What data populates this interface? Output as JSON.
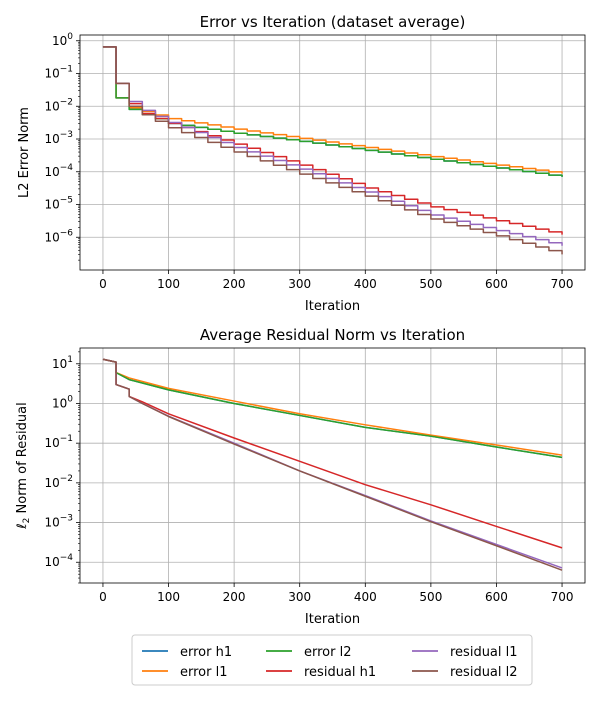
{
  "chart_data": [
    {
      "type": "line",
      "title": "Error vs Iteration (dataset average)",
      "xlabel": "Iteration",
      "ylabel": "L2 Error Norm",
      "yscale": "log",
      "xlim": [
        -35,
        735
      ],
      "ylim": [
        1e-07,
        1.5
      ],
      "xticks": [
        0,
        100,
        200,
        300,
        400,
        500,
        600,
        700
      ],
      "xtick_labels": [
        "0",
        "100",
        "200",
        "300",
        "400",
        "500",
        "600",
        "700"
      ],
      "yticks": [
        1e-06,
        1e-05,
        0.0001,
        0.001,
        0.01,
        0.1,
        1
      ],
      "ytick_labels": [
        {
          "base": "10",
          "exp": "−6"
        },
        {
          "base": "10",
          "exp": "−5"
        },
        {
          "base": "10",
          "exp": "−4"
        },
        {
          "base": "10",
          "exp": "−3"
        },
        {
          "base": "10",
          "exp": "−2"
        },
        {
          "base": "10",
          "exp": "−1"
        },
        {
          "base": "10",
          "exp": "0"
        }
      ],
      "grid": true,
      "series": [
        {
          "name": "error h1",
          "color": "#1f77b4",
          "step": 20,
          "points": [
            [
              0,
              0.65
            ],
            [
              20,
              0.018
            ],
            [
              40,
              0.008
            ],
            [
              100,
              0.003
            ],
            [
              200,
              0.0015
            ],
            [
              300,
              0.00085
            ],
            [
              400,
              0.00045
            ],
            [
              500,
              0.00024
            ],
            [
              600,
              0.00013
            ],
            [
              700,
              7e-05
            ]
          ]
        },
        {
          "name": "error l1",
          "color": "#ff7f0e",
          "step": 20,
          "points": [
            [
              0,
              0.65
            ],
            [
              20,
              0.018
            ],
            [
              40,
              0.009
            ],
            [
              100,
              0.0042
            ],
            [
              200,
              0.002
            ],
            [
              300,
              0.00105
            ],
            [
              400,
              0.00055
            ],
            [
              500,
              0.00029
            ],
            [
              600,
              0.00016
            ],
            [
              700,
              8.8e-05
            ]
          ]
        },
        {
          "name": "error l2",
          "color": "#2ca02c",
          "step": 20,
          "points": [
            [
              0,
              0.65
            ],
            [
              20,
              0.018
            ],
            [
              40,
              0.008
            ],
            [
              100,
              0.003
            ],
            [
              200,
              0.0015
            ],
            [
              300,
              0.00085
            ],
            [
              400,
              0.00045
            ],
            [
              500,
              0.00024
            ],
            [
              600,
              0.00013
            ],
            [
              700,
              7e-05
            ]
          ]
        },
        {
          "name": "residual h1",
          "color": "#d62728",
          "step": 20,
          "points": [
            [
              0,
              0.65
            ],
            [
              20,
              0.05
            ],
            [
              40,
              0.012
            ],
            [
              60,
              0.006
            ],
            [
              100,
              0.003
            ],
            [
              200,
              0.0007
            ],
            [
              300,
              0.00016
            ],
            [
              400,
              3.2e-05
            ],
            [
              500,
              8.5e-06
            ],
            [
              600,
              3.2e-06
            ],
            [
              700,
              1.2e-06
            ]
          ]
        },
        {
          "name": "residual l1",
          "color": "#9467bd",
          "step": 20,
          "points": [
            [
              0,
              0.65
            ],
            [
              20,
              0.05
            ],
            [
              40,
              0.014
            ],
            [
              60,
              0.0075
            ],
            [
              100,
              0.0032
            ],
            [
              200,
              0.00055
            ],
            [
              300,
              0.00012
            ],
            [
              400,
              2.4e-05
            ],
            [
              500,
              4.8e-06
            ],
            [
              600,
              1.6e-06
            ],
            [
              700,
              5.5e-07
            ]
          ]
        },
        {
          "name": "residual l2",
          "color": "#8c564b",
          "step": 20,
          "points": [
            [
              0,
              0.65
            ],
            [
              20,
              0.05
            ],
            [
              40,
              0.01
            ],
            [
              60,
              0.0055
            ],
            [
              100,
              0.0022
            ],
            [
              200,
              0.0004
            ],
            [
              300,
              8.5e-05
            ],
            [
              400,
              1.8e-05
            ],
            [
              500,
              3.6e-06
            ],
            [
              600,
              1.1e-06
            ],
            [
              700,
              3e-07
            ]
          ]
        }
      ]
    },
    {
      "type": "line",
      "title": "Average Residual Norm vs Iteration",
      "xlabel": "Iteration",
      "ylabel": {
        "prefix": "ℓ",
        "sub": "2",
        "rest": " Norm of Residual"
      },
      "yscale": "log",
      "xlim": [
        -35,
        735
      ],
      "ylim": [
        3e-05,
        25
      ],
      "xticks": [
        0,
        100,
        200,
        300,
        400,
        500,
        600,
        700
      ],
      "xtick_labels": [
        "0",
        "100",
        "200",
        "300",
        "400",
        "500",
        "600",
        "700"
      ],
      "yticks": [
        0.0001,
        0.001,
        0.01,
        0.1,
        1,
        10
      ],
      "ytick_labels": [
        {
          "base": "10",
          "exp": "−4"
        },
        {
          "base": "10",
          "exp": "−3"
        },
        {
          "base": "10",
          "exp": "−2"
        },
        {
          "base": "10",
          "exp": "−1"
        },
        {
          "base": "10",
          "exp": "0"
        },
        {
          "base": "10",
          "exp": "1"
        }
      ],
      "grid": true,
      "series": [
        {
          "name": "error h1",
          "color": "#1f77b4",
          "points": [
            [
              0,
              13
            ],
            [
              20,
              11
            ],
            [
              20,
              6
            ],
            [
              40,
              4
            ],
            [
              100,
              2.2
            ],
            [
              200,
              1.0
            ],
            [
              300,
              0.5
            ],
            [
              400,
              0.25
            ],
            [
              500,
              0.15
            ],
            [
              600,
              0.08
            ],
            [
              700,
              0.044
            ]
          ]
        },
        {
          "name": "error l1",
          "color": "#ff7f0e",
          "points": [
            [
              0,
              13
            ],
            [
              20,
              11
            ],
            [
              20,
              6
            ],
            [
              40,
              4.4
            ],
            [
              100,
              2.4
            ],
            [
              200,
              1.15
            ],
            [
              300,
              0.55
            ],
            [
              400,
              0.29
            ],
            [
              500,
              0.16
            ],
            [
              600,
              0.09
            ],
            [
              700,
              0.05
            ]
          ]
        },
        {
          "name": "error l2",
          "color": "#2ca02c",
          "points": [
            [
              0,
              13
            ],
            [
              20,
              11
            ],
            [
              20,
              6
            ],
            [
              40,
              4
            ],
            [
              100,
              2.2
            ],
            [
              200,
              1.0
            ],
            [
              300,
              0.5
            ],
            [
              400,
              0.25
            ],
            [
              500,
              0.15
            ],
            [
              600,
              0.08
            ],
            [
              700,
              0.044
            ]
          ]
        },
        {
          "name": "residual h1",
          "color": "#d62728",
          "points": [
            [
              0,
              13
            ],
            [
              20,
              11
            ],
            [
              20,
              3
            ],
            [
              40,
              2.3
            ],
            [
              40,
              1.5
            ],
            [
              60,
              1.1
            ],
            [
              100,
              0.55
            ],
            [
              200,
              0.135
            ],
            [
              300,
              0.035
            ],
            [
              400,
              0.009
            ],
            [
              500,
              0.0028
            ],
            [
              600,
              0.0008
            ],
            [
              700,
              0.00023
            ]
          ]
        },
        {
          "name": "residual l1",
          "color": "#9467bd",
          "points": [
            [
              0,
              13
            ],
            [
              20,
              11
            ],
            [
              20,
              3
            ],
            [
              40,
              2.3
            ],
            [
              40,
              1.5
            ],
            [
              60,
              1.0
            ],
            [
              100,
              0.48
            ],
            [
              200,
              0.1
            ],
            [
              300,
              0.02
            ],
            [
              400,
              0.0048
            ],
            [
              500,
              0.0011
            ],
            [
              600,
              0.00028
            ],
            [
              700,
              7.2e-05
            ]
          ]
        },
        {
          "name": "residual l2",
          "color": "#8c564b",
          "points": [
            [
              0,
              13
            ],
            [
              20,
              11
            ],
            [
              20,
              3
            ],
            [
              40,
              2.3
            ],
            [
              40,
              1.5
            ],
            [
              60,
              1.0
            ],
            [
              100,
              0.47
            ],
            [
              200,
              0.095
            ],
            [
              300,
              0.02
            ],
            [
              400,
              0.0046
            ],
            [
              500,
              0.00105
            ],
            [
              600,
              0.00026
            ],
            [
              700,
              6.3e-05
            ]
          ]
        }
      ]
    }
  ],
  "legend": {
    "placement": "bottom-center",
    "entries": [
      {
        "label": "error h1",
        "color": "#1f77b4"
      },
      {
        "label": "error l1",
        "color": "#ff7f0e"
      },
      {
        "label": "error l2",
        "color": "#2ca02c"
      },
      {
        "label": "residual h1",
        "color": "#d62728"
      },
      {
        "label": "residual l1",
        "color": "#9467bd"
      },
      {
        "label": "residual l2",
        "color": "#8c564b"
      }
    ]
  }
}
